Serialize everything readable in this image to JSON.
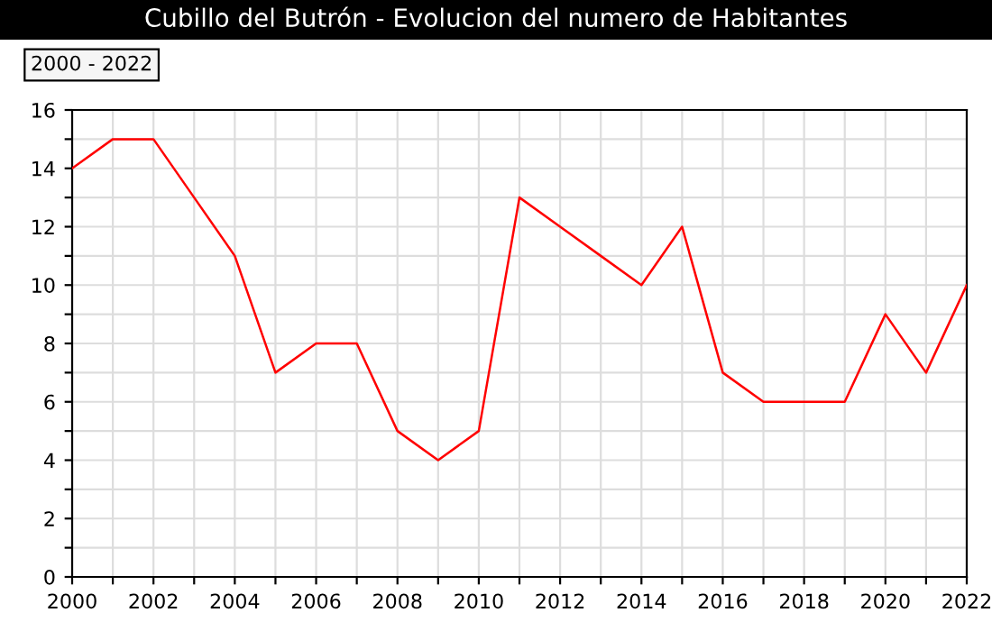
{
  "chart_data": {
    "type": "line",
    "title": "Cubillo del Butrón - Evolucion del numero de Habitantes",
    "subtitle": "2000 - 2022",
    "x": [
      2000,
      2001,
      2002,
      2003,
      2004,
      2005,
      2006,
      2007,
      2008,
      2009,
      2010,
      2011,
      2012,
      2013,
      2014,
      2015,
      2016,
      2017,
      2018,
      2019,
      2020,
      2021,
      2022
    ],
    "series": [
      {
        "color": "#ff0000",
        "values": [
          14,
          15,
          15,
          13,
          11,
          7,
          8,
          8,
          5,
          4,
          5,
          13,
          12,
          11,
          10,
          12,
          7,
          6,
          6,
          6,
          9,
          7,
          10
        ]
      }
    ],
    "xlim": [
      2000,
      2022
    ],
    "xticks": [
      2000,
      {
        "value": 2001,
        "label": null
      },
      2002,
      {
        "value": 2003,
        "label": null
      },
      2004,
      {
        "value": 2005,
        "label": null
      },
      2006,
      {
        "value": 2007,
        "label": null
      },
      2008,
      {
        "value": 2009,
        "label": null
      },
      2010,
      {
        "value": 2011,
        "label": null
      },
      2012,
      {
        "value": 2013,
        "label": null
      },
      2014,
      {
        "value": 2015,
        "label": null
      },
      2016,
      {
        "value": 2017,
        "label": null
      },
      2018,
      {
        "value": 2019,
        "label": null
      },
      2020,
      {
        "value": 2021,
        "label": null
      },
      2022
    ],
    "ylim": [
      0,
      16
    ],
    "yticks": [
      0,
      {
        "value": 1,
        "label": null
      },
      2,
      {
        "value": 3,
        "label": null
      },
      4,
      {
        "value": 5,
        "label": null
      },
      6,
      {
        "value": 7,
        "label": null
      },
      8,
      {
        "value": 9,
        "label": null
      },
      10,
      {
        "value": 11,
        "label": null
      },
      12,
      {
        "value": 13,
        "label": null
      },
      14,
      {
        "value": 15,
        "label": null
      },
      16
    ],
    "grid": true,
    "legend": false,
    "marker": "none",
    "line_style": "solid"
  }
}
